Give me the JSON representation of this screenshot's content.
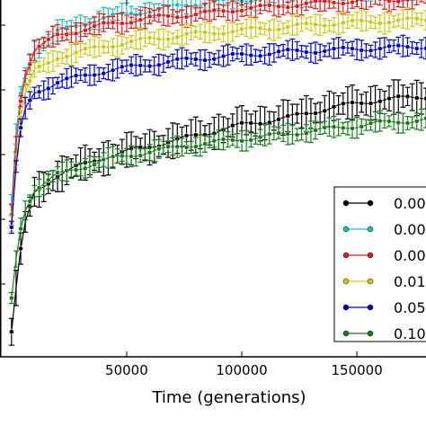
{
  "chart_data": {
    "type": "line",
    "xlabel": "Time (generations)",
    "xlim": [
      -5000,
      180000
    ],
    "ylim": [
      0,
      1
    ],
    "x_ticks": [
      50000,
      100000,
      150000
    ],
    "x_tick_labels": [
      "50000",
      "100000",
      "150000"
    ],
    "grid": false,
    "legend_placement": "right",
    "error_bars": true,
    "series": [
      {
        "name": "0.00",
        "color": "#000000",
        "x": [
          0,
          2500,
          5000,
          10000,
          20000,
          40000,
          60000,
          80000,
          100000,
          120000,
          140000,
          160000,
          180000
        ],
        "y": [
          0.07,
          0.22,
          0.35,
          0.46,
          0.51,
          0.56,
          0.59,
          0.62,
          0.65,
          0.67,
          0.7,
          0.72,
          0.73
        ]
      },
      {
        "name": "0.00",
        "color": "#1fbcbc",
        "x": [
          0,
          2500,
          5000,
          10000,
          20000,
          40000,
          60000,
          80000,
          100000,
          120000,
          140000,
          160000,
          180000
        ],
        "y": [
          0.42,
          0.67,
          0.78,
          0.86,
          0.91,
          0.95,
          0.97,
          0.99,
          1.0,
          1.01,
          1.02,
          1.03,
          1.035
        ]
      },
      {
        "name": "0.00",
        "color": "#e31a1c",
        "x": [
          0,
          2500,
          5000,
          10000,
          20000,
          40000,
          60000,
          80000,
          100000,
          120000,
          140000,
          160000,
          180000
        ],
        "y": [
          0.4,
          0.65,
          0.77,
          0.86,
          0.9,
          0.93,
          0.95,
          0.96,
          0.975,
          0.985,
          0.995,
          1.0,
          1.005
        ]
      },
      {
        "name": "0.01",
        "color": "#c9c91a",
        "x": [
          0,
          2500,
          5000,
          10000,
          20000,
          40000,
          60000,
          80000,
          100000,
          120000,
          140000,
          160000,
          180000
        ],
        "y": [
          0.38,
          0.6,
          0.72,
          0.8,
          0.84,
          0.87,
          0.89,
          0.905,
          0.915,
          0.925,
          0.935,
          0.94,
          0.945
        ]
      },
      {
        "name": "0.05",
        "color": "#0000cc",
        "x": [
          0,
          2500,
          5000,
          10000,
          20000,
          40000,
          60000,
          80000,
          100000,
          120000,
          140000,
          160000,
          180000
        ],
        "y": [
          0.36,
          0.57,
          0.68,
          0.74,
          0.77,
          0.8,
          0.82,
          0.835,
          0.845,
          0.855,
          0.86,
          0.865,
          0.87
        ]
      },
      {
        "name": "0.10",
        "color": "#1a7a1a",
        "x": [
          0,
          2500,
          5000,
          10000,
          20000,
          40000,
          60000,
          80000,
          100000,
          120000,
          140000,
          160000,
          180000
        ],
        "y": [
          0.16,
          0.3,
          0.4,
          0.47,
          0.51,
          0.55,
          0.575,
          0.595,
          0.61,
          0.625,
          0.64,
          0.655,
          0.665
        ]
      }
    ]
  }
}
